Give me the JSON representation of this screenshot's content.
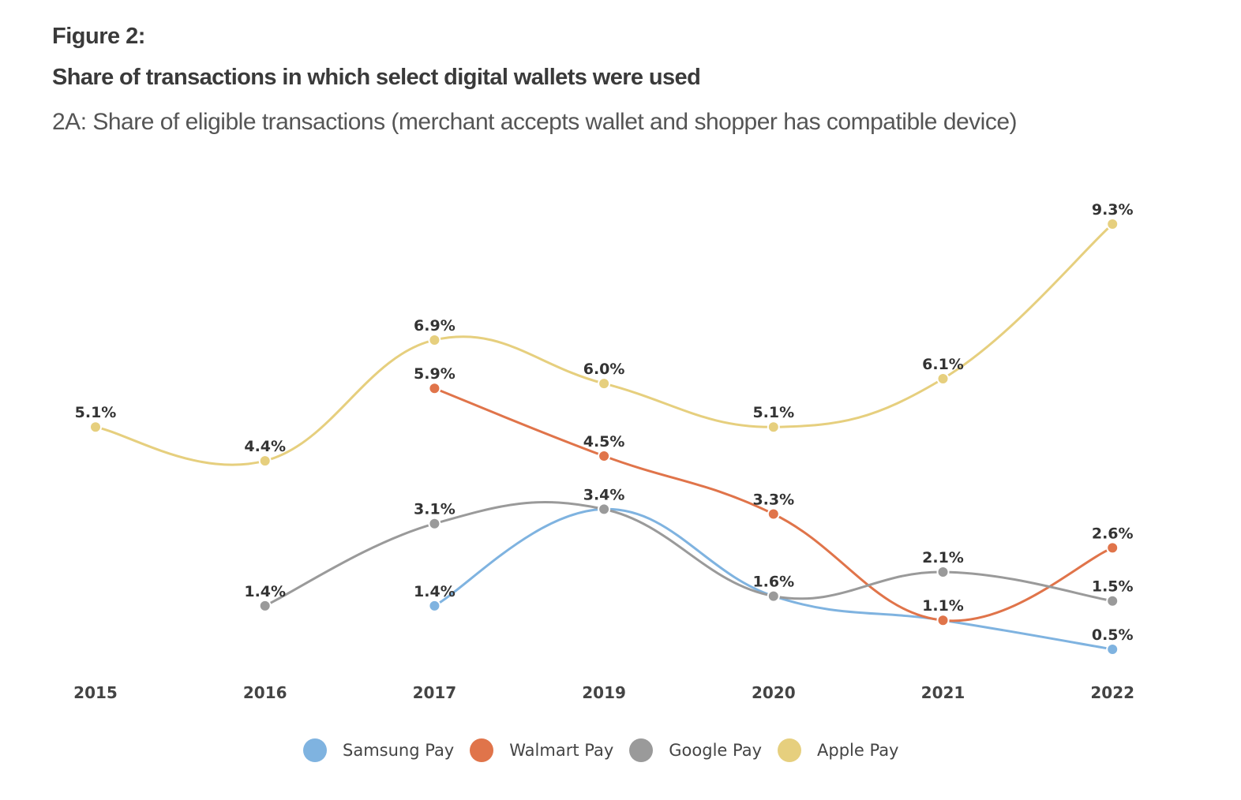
{
  "header": {
    "figure_label": "Figure 2:",
    "title": "Share of transactions in which select digital wallets were used",
    "subtitle": "2A: Share of eligible transactions (merchant accepts wallet and shopper has compatible device)"
  },
  "chart_data": {
    "type": "line",
    "title": "Share of transactions in which select digital wallets were used",
    "subtitle": "2A: Share of eligible transactions (merchant accepts wallet and shopper has compatible device)",
    "xlabel": "",
    "ylabel": "",
    "categories": [
      "2015",
      "2016",
      "2017",
      "2019",
      "2020",
      "2021",
      "2022"
    ],
    "unit": "%",
    "ylim": [
      0,
      10
    ],
    "grid": false,
    "smooth": true,
    "legend_position": "bottom-center",
    "series": [
      {
        "name": "Samsung Pay",
        "color": "#7fb3e0",
        "values": [
          null,
          null,
          1.4,
          3.4,
          1.6,
          1.1,
          0.5
        ],
        "labels": [
          null,
          null,
          "1.4%",
          null,
          null,
          null,
          "0.5%"
        ]
      },
      {
        "name": "Walmart Pay",
        "color": "#e0744a",
        "values": [
          null,
          null,
          5.9,
          4.5,
          3.3,
          1.1,
          2.6
        ],
        "labels": [
          null,
          null,
          "5.9%",
          "4.5%",
          "3.3%",
          "1.1%",
          "2.6%"
        ]
      },
      {
        "name": "Google Pay",
        "color": "#9a9a9a",
        "values": [
          null,
          1.4,
          3.1,
          3.4,
          1.6,
          2.1,
          1.5
        ],
        "labels": [
          null,
          "1.4%",
          "3.1%",
          "3.4%",
          "1.6%",
          "2.1%",
          "1.5%"
        ]
      },
      {
        "name": "Apple Pay",
        "color": "#e6cf7e",
        "values": [
          5.1,
          4.4,
          6.9,
          6.0,
          5.1,
          6.1,
          9.3
        ],
        "labels": [
          "5.1%",
          "4.4%",
          "6.9%",
          "6.0%",
          "5.1%",
          "6.1%",
          "9.3%"
        ]
      }
    ]
  },
  "legend": {
    "items": [
      {
        "label": "Samsung Pay",
        "color": "#7fb3e0"
      },
      {
        "label": "Walmart Pay",
        "color": "#e0744a"
      },
      {
        "label": "Google Pay",
        "color": "#9a9a9a"
      },
      {
        "label": "Apple Pay",
        "color": "#e6cf7e"
      }
    ]
  }
}
